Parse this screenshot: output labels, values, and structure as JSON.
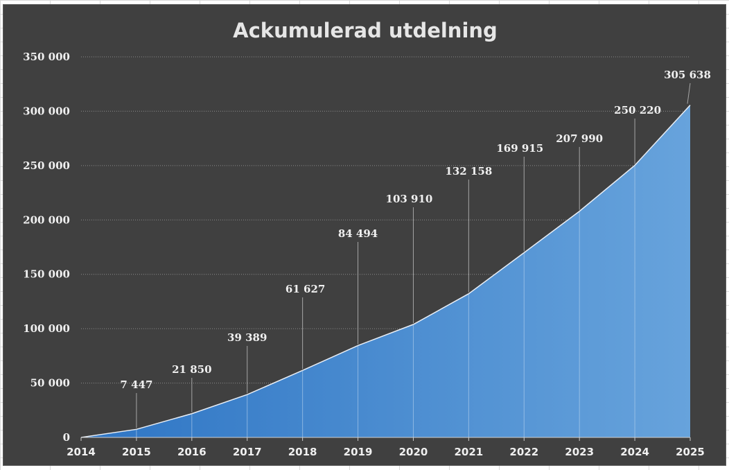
{
  "chart_data": {
    "type": "area",
    "title": "Ackumulerad utdelning",
    "xlabel": "",
    "ylabel": "",
    "x": [
      "2014",
      "2015",
      "2016",
      "2017",
      "2018",
      "2019",
      "2020",
      "2021",
      "2022",
      "2023",
      "2024",
      "2025"
    ],
    "values": [
      0,
      7447,
      21850,
      39389,
      61627,
      84494,
      103910,
      132158,
      169915,
      207990,
      250220,
      305638
    ],
    "data_labels": [
      "",
      "7 447",
      "21 850",
      "39 389",
      "61 627",
      "84 494",
      "103 910",
      "132 158",
      "169 915",
      "207 990",
      "250 220",
      "305 638"
    ],
    "ylim": [
      0,
      350000
    ],
    "y_ticks": [
      0,
      50000,
      100000,
      150000,
      200000,
      250000,
      300000,
      350000
    ],
    "y_tick_labels": [
      "0",
      "50 000",
      "100 000",
      "150 000",
      "200 000",
      "250 000",
      "300 000",
      "350 000"
    ],
    "grid": true,
    "legend": "none"
  },
  "colors": {
    "background": "#404040",
    "area_fill_start": "#2e75c4",
    "area_fill_end": "#67a3dc",
    "area_line": "#e8eef6",
    "gridline": "#8a8a8a",
    "text": "#f0f0f0"
  }
}
